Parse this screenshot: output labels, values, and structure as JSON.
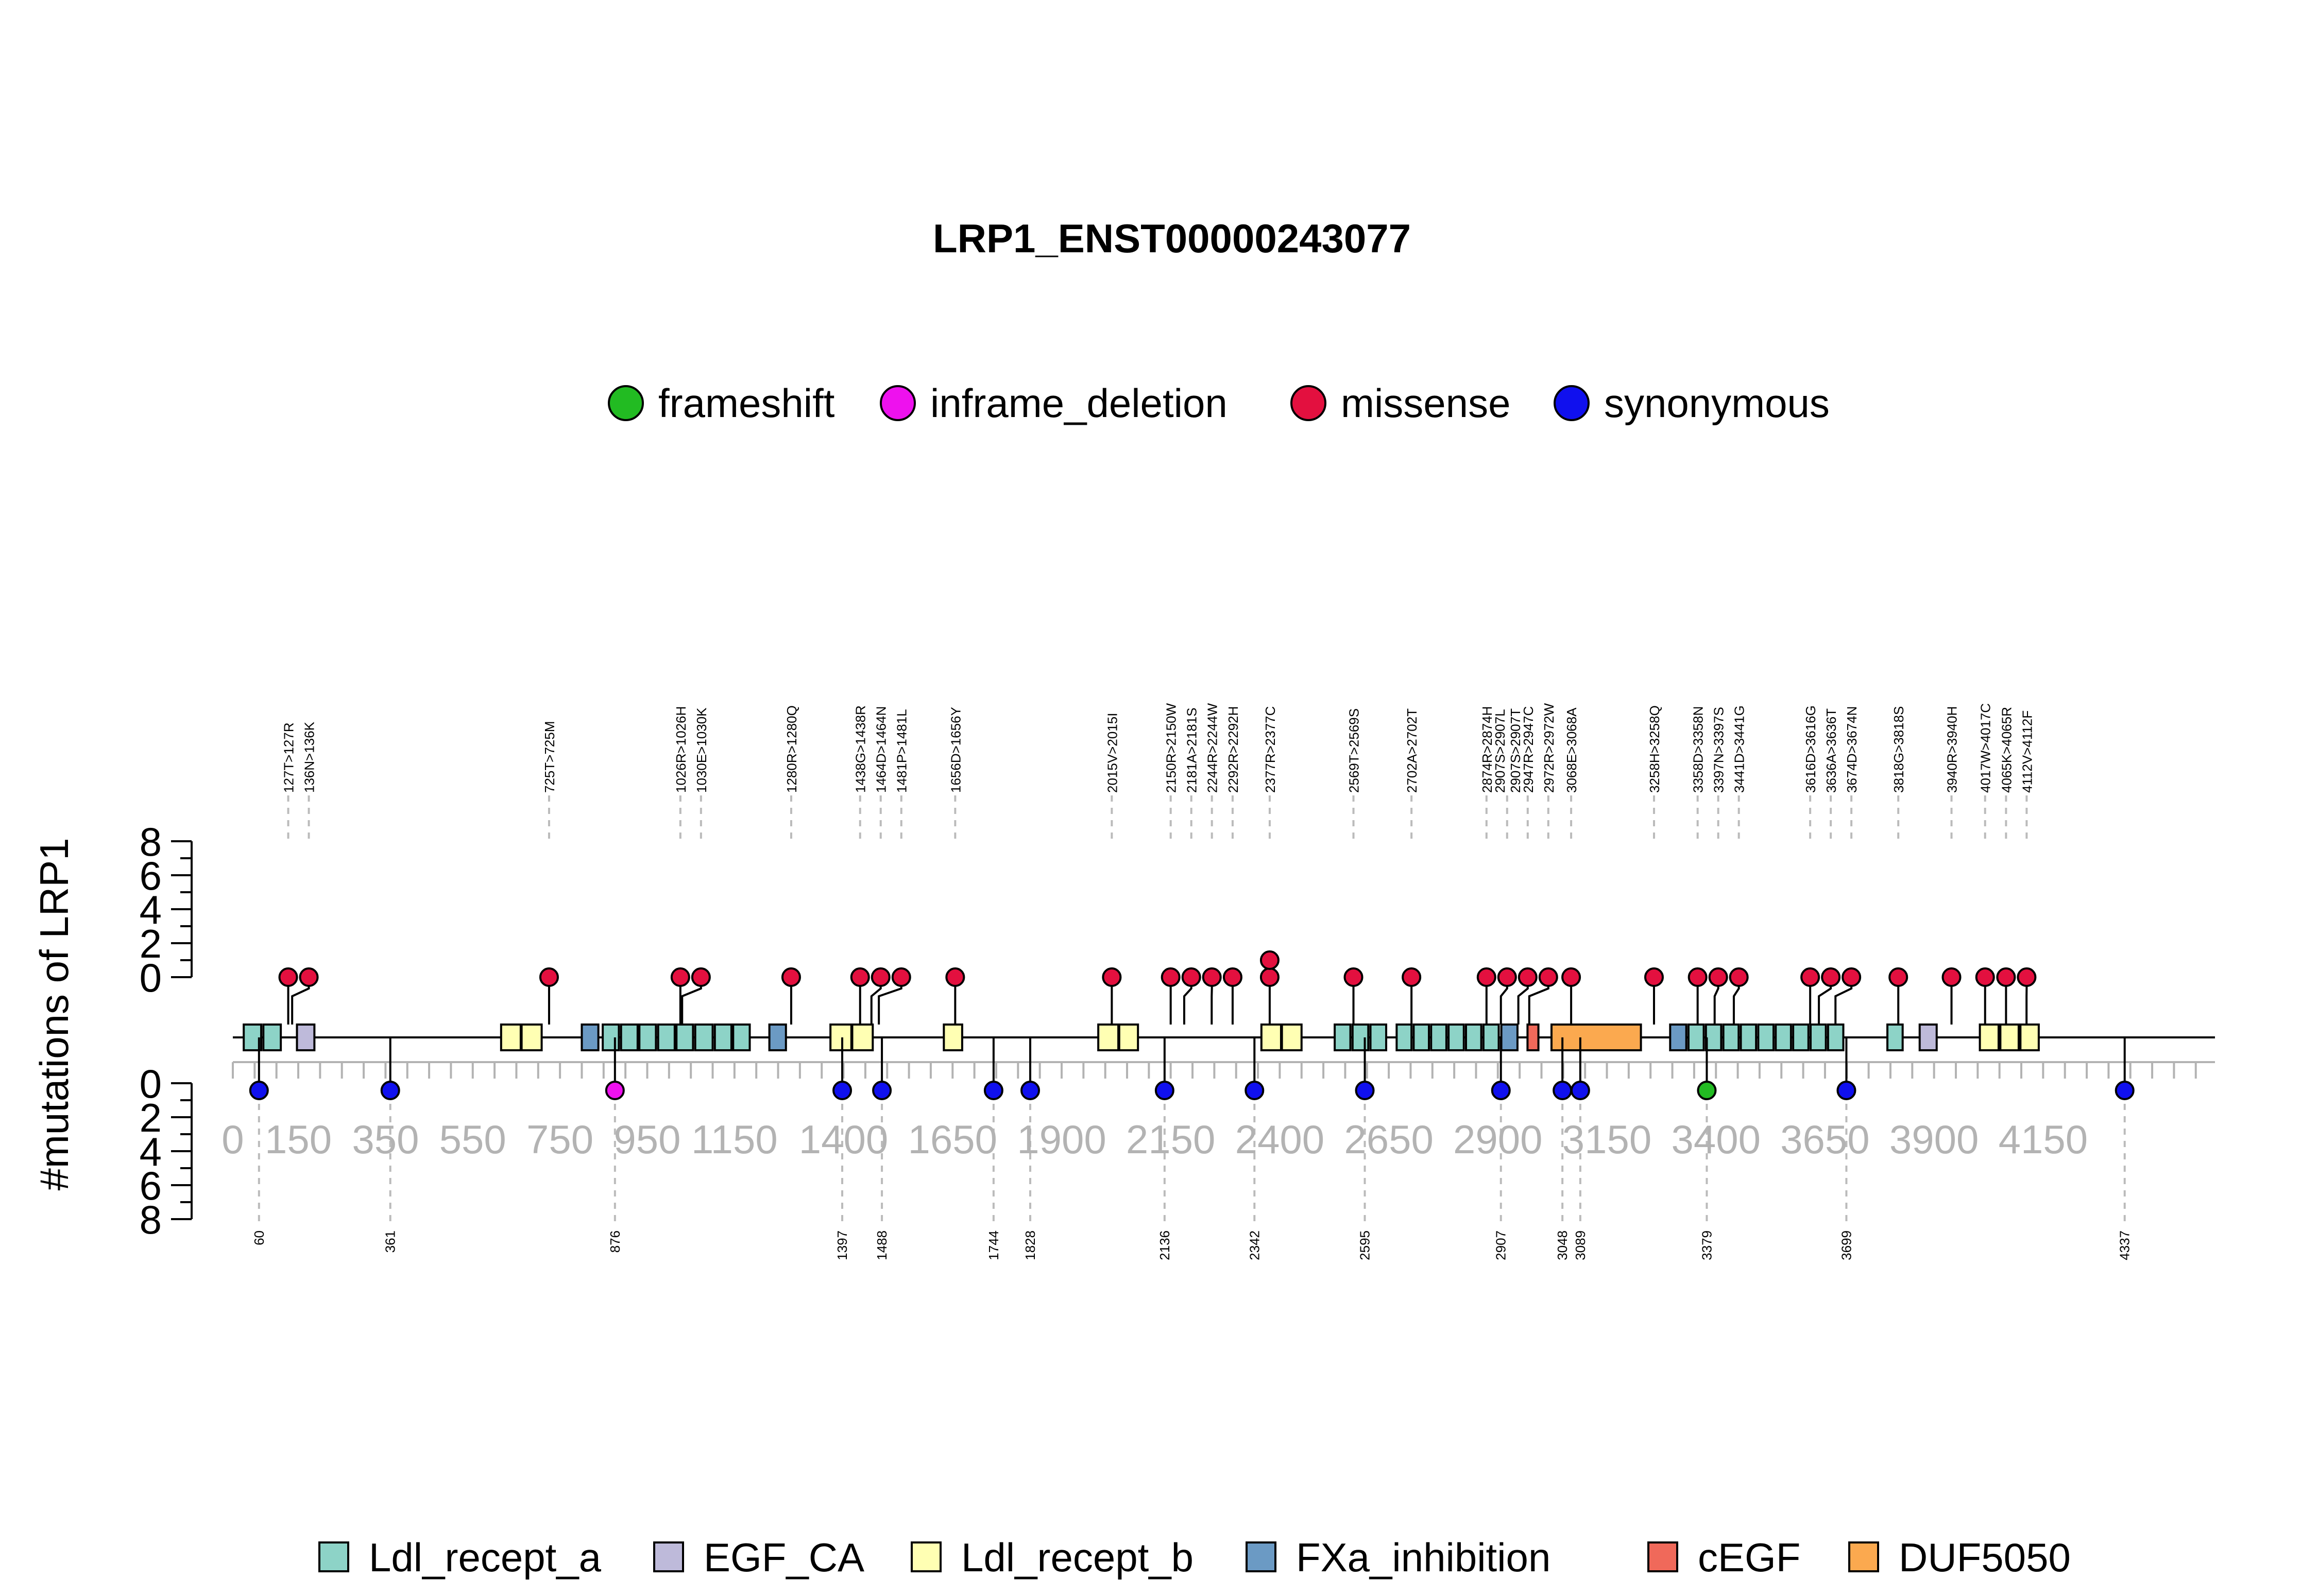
{
  "chart_data": {
    "type": "lollipop",
    "title": "LRP1_ENST00000243077",
    "ylabel": "#mutations of LRP1",
    "xlim": [
      0,
      4544
    ],
    "x_ticks": [
      0,
      150,
      350,
      550,
      750,
      950,
      1150,
      1400,
      1650,
      1900,
      2150,
      2400,
      2650,
      2900,
      3150,
      3400,
      3650,
      3900,
      4150
    ],
    "y_ticks": [
      "0",
      "2",
      "4",
      "6",
      "8"
    ],
    "mutation_types": [
      {
        "name": "frameshift",
        "color": "#22bb22"
      },
      {
        "name": "inframe_deletion",
        "color": "#ee11ee"
      },
      {
        "name": "missense",
        "color": "#e3103f"
      },
      {
        "name": "synonymous",
        "color": "#1010ee"
      }
    ],
    "domain_types": [
      {
        "name": "Ldl_recept_a",
        "color": "#8dd3c7"
      },
      {
        "name": "EGF_CA",
        "color": "#bebada"
      },
      {
        "name": "Ldl_recept_b",
        "color": "#ffffb3"
      },
      {
        "name": "FXa_inhibition",
        "color": "#6b9ac4"
      },
      {
        "name": "cEGF",
        "color": "#f0695a"
      },
      {
        "name": "DUF5050",
        "color": "#fba94f"
      }
    ],
    "domains": [
      {
        "type": "Ldl_recept_a",
        "start": 25,
        "end": 65
      },
      {
        "type": "Ldl_recept_a",
        "start": 70,
        "end": 110
      },
      {
        "type": "EGF_CA",
        "start": 147,
        "end": 187
      },
      {
        "type": "Ldl_recept_b",
        "start": 615,
        "end": 660
      },
      {
        "type": "Ldl_recept_b",
        "start": 662,
        "end": 708
      },
      {
        "type": "FXa_inhibition",
        "start": 800,
        "end": 838
      },
      {
        "type": "Ldl_recept_a",
        "start": 848,
        "end": 885
      },
      {
        "type": "Ldl_recept_a",
        "start": 890,
        "end": 928
      },
      {
        "type": "Ldl_recept_a",
        "start": 932,
        "end": 970
      },
      {
        "type": "Ldl_recept_a",
        "start": 975,
        "end": 1013
      },
      {
        "type": "Ldl_recept_a",
        "start": 1017,
        "end": 1055
      },
      {
        "type": "Ldl_recept_a",
        "start": 1060,
        "end": 1100
      },
      {
        "type": "Ldl_recept_a",
        "start": 1105,
        "end": 1143
      },
      {
        "type": "Ldl_recept_a",
        "start": 1147,
        "end": 1185
      },
      {
        "type": "FXa_inhibition",
        "start": 1230,
        "end": 1268
      },
      {
        "type": "Ldl_recept_b",
        "start": 1370,
        "end": 1418
      },
      {
        "type": "Ldl_recept_b",
        "start": 1420,
        "end": 1467
      },
      {
        "type": "Ldl_recept_b",
        "start": 1630,
        "end": 1672
      },
      {
        "type": "Ldl_recept_b",
        "start": 1984,
        "end": 2030
      },
      {
        "type": "Ldl_recept_b",
        "start": 2032,
        "end": 2075
      },
      {
        "type": "Ldl_recept_b",
        "start": 2358,
        "end": 2403
      },
      {
        "type": "Ldl_recept_b",
        "start": 2405,
        "end": 2450
      },
      {
        "type": "Ldl_recept_a",
        "start": 2526,
        "end": 2562
      },
      {
        "type": "Ldl_recept_a",
        "start": 2567,
        "end": 2603
      },
      {
        "type": "Ldl_recept_a",
        "start": 2608,
        "end": 2644
      },
      {
        "type": "Ldl_recept_a",
        "start": 2668,
        "end": 2702
      },
      {
        "type": "Ldl_recept_a",
        "start": 2707,
        "end": 2742
      },
      {
        "type": "Ldl_recept_a",
        "start": 2747,
        "end": 2782
      },
      {
        "type": "Ldl_recept_a",
        "start": 2787,
        "end": 2822
      },
      {
        "type": "Ldl_recept_a",
        "start": 2827,
        "end": 2862
      },
      {
        "type": "Ldl_recept_a",
        "start": 2867,
        "end": 2902
      },
      {
        "type": "FXa_inhibition",
        "start": 2908,
        "end": 2945
      },
      {
        "type": "cEGF",
        "start": 2968,
        "end": 2993
      },
      {
        "type": "DUF5050",
        "start": 3023,
        "end": 3228
      },
      {
        "type": "FXa_inhibition",
        "start": 3295,
        "end": 3332
      },
      {
        "type": "Ldl_recept_a",
        "start": 3337,
        "end": 3372
      },
      {
        "type": "Ldl_recept_a",
        "start": 3377,
        "end": 3412
      },
      {
        "type": "Ldl_recept_a",
        "start": 3417,
        "end": 3452
      },
      {
        "type": "Ldl_recept_a",
        "start": 3457,
        "end": 3492
      },
      {
        "type": "Ldl_recept_a",
        "start": 3497,
        "end": 3532
      },
      {
        "type": "Ldl_recept_a",
        "start": 3537,
        "end": 3572
      },
      {
        "type": "Ldl_recept_a",
        "start": 3577,
        "end": 3612
      },
      {
        "type": "Ldl_recept_a",
        "start": 3617,
        "end": 3652
      },
      {
        "type": "Ldl_recept_a",
        "start": 3657,
        "end": 3692
      },
      {
        "type": "Ldl_recept_a",
        "start": 3793,
        "end": 3828
      },
      {
        "type": "EGF_CA",
        "start": 3867,
        "end": 3906
      },
      {
        "type": "Ldl_recept_b",
        "start": 4005,
        "end": 4048
      },
      {
        "type": "Ldl_recept_b",
        "start": 4052,
        "end": 4094
      },
      {
        "type": "Ldl_recept_b",
        "start": 4098,
        "end": 4140
      }
    ],
    "top_mutations": [
      {
        "label": "127T>127R",
        "pos": 127,
        "count": 1,
        "type": "missense"
      },
      {
        "label": "136N>136K",
        "pos": 136,
        "count": 1,
        "type": "missense"
      },
      {
        "label": "725T>725M",
        "pos": 725,
        "count": 1,
        "type": "missense"
      },
      {
        "label": "1026R>1026H",
        "pos": 1026,
        "count": 1,
        "type": "missense"
      },
      {
        "label": "1030E>1030K",
        "pos": 1030,
        "count": 1,
        "type": "missense"
      },
      {
        "label": "1280R>1280Q",
        "pos": 1280,
        "count": 1,
        "type": "missense"
      },
      {
        "label": "1438G>1438R",
        "pos": 1438,
        "count": 1,
        "type": "missense"
      },
      {
        "label": "1464D>1464N",
        "pos": 1464,
        "count": 1,
        "type": "missense"
      },
      {
        "label": "1481P>1481L",
        "pos": 1481,
        "count": 1,
        "type": "missense"
      },
      {
        "label": "1656D>1656Y",
        "pos": 1656,
        "count": 1,
        "type": "missense"
      },
      {
        "label": "2015V>2015I",
        "pos": 2015,
        "count": 1,
        "type": "missense"
      },
      {
        "label": "2150R>2150W",
        "pos": 2150,
        "count": 1,
        "type": "missense"
      },
      {
        "label": "2181A>2181S",
        "pos": 2181,
        "count": 1,
        "type": "missense"
      },
      {
        "label": "2244R>2244W",
        "pos": 2244,
        "count": 1,
        "type": "missense"
      },
      {
        "label": "2292R>2292H",
        "pos": 2292,
        "count": 1,
        "type": "missense"
      },
      {
        "label": "2377R>2377C",
        "pos": 2377,
        "count": 2,
        "type": "missense"
      },
      {
        "label": "2569T>2569S",
        "pos": 2569,
        "count": 1,
        "type": "missense"
      },
      {
        "label": "2702A>2702T",
        "pos": 2702,
        "count": 1,
        "type": "missense"
      },
      {
        "label": "2874R>2874H",
        "pos": 2874,
        "count": 1,
        "type": "missense"
      },
      {
        "label": "2907S>2907L",
        "pos": 2907,
        "count": 1,
        "type": "missense"
      },
      {
        "label": "2907S>2907T",
        "pos": 2907,
        "count": 1,
        "type": "missense"
      },
      {
        "label": "2947R>2947C",
        "pos": 2947,
        "count": 1,
        "type": "missense"
      },
      {
        "label": "2972R>2972W",
        "pos": 2972,
        "count": 1,
        "type": "missense"
      },
      {
        "label": "3068E>3068A",
        "pos": 3068,
        "count": 1,
        "type": "missense"
      },
      {
        "label": "3258H>3258Q",
        "pos": 3258,
        "count": 1,
        "type": "missense"
      },
      {
        "label": "3358D>3358N",
        "pos": 3358,
        "count": 1,
        "type": "missense"
      },
      {
        "label": "3397N>3397S",
        "pos": 3397,
        "count": 1,
        "type": "missense"
      },
      {
        "label": "3441D>3441G",
        "pos": 3441,
        "count": 1,
        "type": "missense"
      },
      {
        "label": "3616D>3616G",
        "pos": 3616,
        "count": 1,
        "type": "missense"
      },
      {
        "label": "3636A>3636T",
        "pos": 3636,
        "count": 1,
        "type": "missense"
      },
      {
        "label": "3674D>3674N",
        "pos": 3674,
        "count": 1,
        "type": "missense"
      },
      {
        "label": "3818G>3818S",
        "pos": 3818,
        "count": 1,
        "type": "missense"
      },
      {
        "label": "3940R>3940H",
        "pos": 3940,
        "count": 1,
        "type": "missense"
      },
      {
        "label": "4017W>4017C",
        "pos": 4017,
        "count": 1,
        "type": "missense"
      },
      {
        "label": "4065K>4065R",
        "pos": 4065,
        "count": 1,
        "type": "missense"
      },
      {
        "label": "4112V>4112F",
        "pos": 4112,
        "count": 1,
        "type": "missense"
      }
    ],
    "bottom_mutations": [
      {
        "label": "60",
        "pos": 60,
        "count": 1,
        "type": "synonymous"
      },
      {
        "label": "361",
        "pos": 361,
        "count": 1,
        "type": "synonymous"
      },
      {
        "label": "876",
        "pos": 876,
        "count": 1,
        "type": "inframe_deletion"
      },
      {
        "label": "1397",
        "pos": 1397,
        "count": 1,
        "type": "synonymous"
      },
      {
        "label": "1488",
        "pos": 1488,
        "count": 1,
        "type": "synonymous"
      },
      {
        "label": "1744",
        "pos": 1744,
        "count": 1,
        "type": "synonymous"
      },
      {
        "label": "1828",
        "pos": 1828,
        "count": 1,
        "type": "synonymous"
      },
      {
        "label": "2136",
        "pos": 2136,
        "count": 1,
        "type": "synonymous"
      },
      {
        "label": "2342",
        "pos": 2342,
        "count": 1,
        "type": "synonymous"
      },
      {
        "label": "2595",
        "pos": 2595,
        "count": 1,
        "type": "synonymous"
      },
      {
        "label": "2907",
        "pos": 2907,
        "count": 1,
        "type": "synonymous"
      },
      {
        "label": "3048",
        "pos": 3048,
        "count": 1,
        "type": "synonymous"
      },
      {
        "label": "3089",
        "pos": 3089,
        "count": 1,
        "type": "synonymous"
      },
      {
        "label": "3379",
        "pos": 3379,
        "count": 1,
        "type": "frameshift"
      },
      {
        "label": "3699",
        "pos": 3699,
        "count": 1,
        "type": "synonymous"
      },
      {
        "label": "4337",
        "pos": 4337,
        "count": 1,
        "type": "synonymous"
      }
    ]
  }
}
